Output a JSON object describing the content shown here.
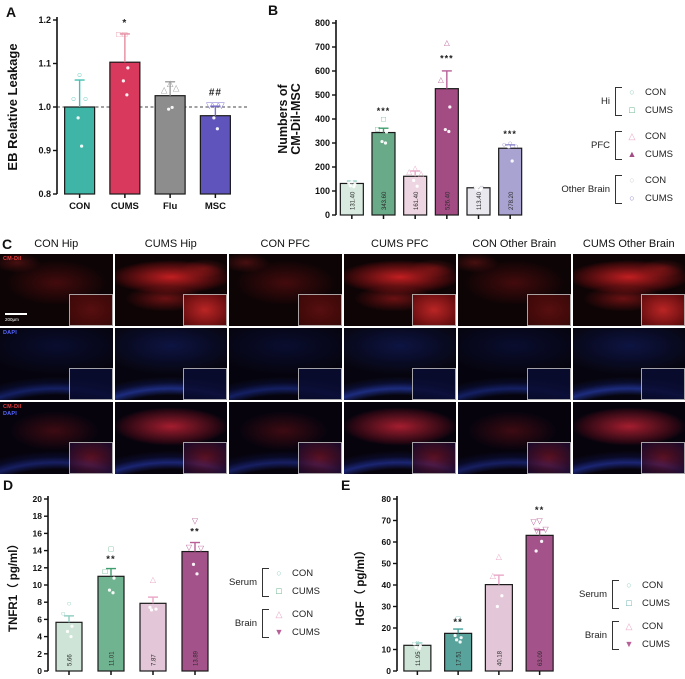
{
  "panel_labels": {
    "a": "A",
    "b": "B",
    "c": "C",
    "d": "D",
    "e": "E"
  },
  "chart_data": [
    {
      "panel": "A",
      "type": "bar",
      "title": "",
      "ylabel": [
        "EB Relative Leakage"
      ],
      "xlabel": "",
      "ylim": [
        0.8,
        1.2
      ],
      "ystep": 0.1,
      "ydec": 1,
      "grid": false,
      "categories": [
        "CON",
        "CUMS",
        "Flu",
        "MSC"
      ],
      "values": [
        1.0,
        1.103,
        1.026,
        0.98
      ],
      "errors": [
        0.062,
        0.065,
        0.032,
        0.022
      ],
      "bar_colors": [
        "#3fb5a8",
        "#d8395d",
        "#8d8d8d",
        "#5f54bb"
      ],
      "accent_colors": [
        "#45c0b2",
        "#e58ca0",
        "#9f9f9f",
        "#7a70cf"
      ],
      "marker_shapes": [
        "circle",
        "square",
        "triangle-up",
        "triangle-down"
      ],
      "points": [
        [
          1.075,
          1.02,
          1.02,
          0.975,
          0.91
        ],
        [
          1.168,
          1.168,
          1.09,
          1.06,
          1.028
        ],
        [
          1.055,
          1.04,
          1.045,
          0.995,
          0.999
        ],
        [
          1.005,
          1.005,
          1.005,
          0.975,
          0.95
        ]
      ],
      "annotations": [
        "",
        "*",
        "",
        "##"
      ],
      "annotation_y": [
        null,
        1.186,
        null,
        1.027
      ],
      "dashed_y": 1.0,
      "show_x_labels": true,
      "value_labels": []
    },
    {
      "panel": "B",
      "type": "bar",
      "title": "",
      "ylabel": [
        "Numbers of",
        "CM-Dil-MSC"
      ],
      "xlabel": "",
      "ylim": [
        0,
        800
      ],
      "ystep": 100,
      "ydec": 0,
      "grid": false,
      "categories": [
        "Hi CON",
        "Hi CUMS",
        "PFC CON",
        "PFC CUMS",
        "Other Brain CON",
        "Other Brain CUMS"
      ],
      "values": [
        131.4,
        343.6,
        161.4,
        526.4,
        113.4,
        278.2
      ],
      "value_labels": [
        "131.40",
        "343.60",
        "161.40",
        "526.40",
        "113.40",
        "278.20"
      ],
      "errors": [
        10,
        18,
        22,
        74,
        5,
        14
      ],
      "bar_colors": [
        "#d9ebe0",
        "#69aa88",
        "#eed5e2",
        "#a34c84",
        "#e9e8ef",
        "#a9a3d2"
      ],
      "accent_colors": [
        "#8fccc0",
        "#3f9e6e",
        "#e8a7c6",
        "#b85f98",
        "#c9c9d4",
        "#8d86c9"
      ],
      "marker_shapes": [
        "circle",
        "square",
        "triangle-up",
        "triangle-up",
        "circle",
        "circle"
      ],
      "points": [
        [
          138,
          133,
          128,
          122,
          118
        ],
        [
          400,
          358,
          346,
          306,
          300
        ],
        [
          196,
          181,
          174,
          144,
          120
        ],
        [
          720,
          565,
          450,
          356,
          348
        ],
        [
          119,
          116,
          112,
          109,
          107
        ],
        [
          301,
          295,
          289,
          284,
          225
        ]
      ],
      "annotations": [
        "",
        "***",
        "",
        "***",
        "",
        "***"
      ],
      "annotation_y": [
        null,
        420,
        null,
        640,
        null,
        325
      ],
      "dashed_y": null,
      "show_x_labels": false,
      "legend": {
        "groups": [
          {
            "label": "Hi",
            "entries": [
              {
                "label": "CON",
                "shape": "circle",
                "color": "#8fccc0"
              },
              {
                "label": "CUMS",
                "shape": "square",
                "color": "#3f9e6e"
              }
            ]
          },
          {
            "label": "PFC",
            "entries": [
              {
                "label": "CON",
                "shape": "triangle-up",
                "color": "#e8a7c6"
              },
              {
                "label": "CUMS",
                "shape": "triangle-up-filled",
                "color": "#a34c84"
              }
            ]
          },
          {
            "label": "Other Brain",
            "entries": [
              {
                "label": "CON",
                "shape": "circle",
                "color": "#cfcfd8"
              },
              {
                "label": "CUMS",
                "shape": "circle",
                "color": "#8d86c9"
              }
            ]
          }
        ]
      }
    },
    {
      "panel": "D",
      "type": "bar",
      "title": "",
      "ylabel": [
        "TNFR1（ pg/ml）"
      ],
      "xlabel": "",
      "ylim": [
        0,
        20
      ],
      "ystep": 2,
      "ydec": 0,
      "grid": false,
      "categories": [
        "Serum CON",
        "Serum CUMS",
        "Brain CON",
        "Brain CUMS"
      ],
      "values": [
        5.66,
        11.01,
        7.87,
        13.89
      ],
      "value_labels": [
        "5.66",
        "11.01",
        "7.87",
        "13.89"
      ],
      "errors": [
        0.75,
        0.9,
        0.72,
        1.05
      ],
      "bar_colors": [
        "#cde4d6",
        "#6fb390",
        "#e3c7d8",
        "#a4538a"
      ],
      "accent_colors": [
        "#8fccc0",
        "#3f9e6e",
        "#e8a7c6",
        "#b85f98"
      ],
      "marker_shapes": [
        "circle",
        "square",
        "triangle-up",
        "triangle-down"
      ],
      "points": [
        [
          7.9,
          6.7,
          5.2,
          4.6,
          4.0
        ],
        [
          14.2,
          11.6,
          10.8,
          9.4,
          9.1
        ],
        [
          10.7,
          7.4,
          7.2,
          7.1
        ],
        [
          17.5,
          14.4,
          14.3,
          12.4,
          11.3
        ]
      ],
      "annotations": [
        "",
        "**",
        "",
        "**"
      ],
      "annotation_y": [
        null,
        12.7,
        null,
        15.9
      ],
      "dashed_y": null,
      "show_x_labels": false,
      "legend": {
        "groups": [
          {
            "label": "Serum",
            "entries": [
              {
                "label": "CON",
                "shape": "circle",
                "color": "#8fccc0"
              },
              {
                "label": "CUMS",
                "shape": "square",
                "color": "#3f9e6e"
              }
            ]
          },
          {
            "label": "Brain",
            "entries": [
              {
                "label": "CON",
                "shape": "triangle-up",
                "color": "#e8a7c6"
              },
              {
                "label": "CUMS",
                "shape": "triangle-down-filled",
                "color": "#b85f98"
              }
            ]
          }
        ]
      }
    },
    {
      "panel": "E",
      "type": "bar",
      "title": "",
      "ylabel": [
        "HGF（ pg/ml）"
      ],
      "xlabel": "",
      "ylim": [
        0,
        80
      ],
      "ystep": 10,
      "ydec": 0,
      "grid": false,
      "categories": [
        "Serum CON",
        "Serum CUMS",
        "Brain CON",
        "Brain CUMS"
      ],
      "values": [
        11.95,
        17.51,
        40.18,
        63.09
      ],
      "value_labels": [
        "11.95",
        "17.51",
        "40.18",
        "63.09"
      ],
      "errors": [
        1.1,
        2.0,
        4.4,
        2.6
      ],
      "bar_colors": [
        "#cde4d6",
        "#58a49d",
        "#e3c7d8",
        "#a4538a"
      ],
      "accent_colors": [
        "#8fccc0",
        "#47a09a",
        "#e8a7c6",
        "#b85f98"
      ],
      "marker_shapes": [
        "circle",
        "square",
        "triangle-up",
        "triangle-down"
      ],
      "points": [
        [
          13.4,
          12.6,
          11.6,
          11.0,
          10.4
        ],
        [
          24.3,
          16.5,
          15.5,
          14.5,
          13.5
        ],
        [
          53.5,
          44.5,
          35.0,
          30.0
        ],
        [
          70.0,
          69.5,
          66.0,
          65.5,
          60.3,
          55.8
        ]
      ],
      "annotations": [
        "",
        "**",
        "",
        "**"
      ],
      "annotation_y": [
        null,
        21.5,
        null,
        73.5
      ],
      "dashed_y": null,
      "show_x_labels": false,
      "legend": {
        "groups": [
          {
            "label": "Serum",
            "entries": [
              {
                "label": "CON",
                "shape": "circle",
                "color": "#8fccc0"
              },
              {
                "label": "CUMS",
                "shape": "square",
                "color": "#47a09a"
              }
            ]
          },
          {
            "label": "Brain",
            "entries": [
              {
                "label": "CON",
                "shape": "triangle-up",
                "color": "#e8a7c6"
              },
              {
                "label": "CUMS",
                "shape": "triangle-down-filled",
                "color": "#b85f98"
              }
            ]
          }
        ]
      }
    }
  ],
  "panel_c": {
    "label": "C",
    "column_headers": [
      "CON Hip",
      "CUMS Hip",
      "CON PFC",
      "CUMS PFC",
      "CON Other Brain",
      "CUMS Other Brain"
    ],
    "stain_rows": [
      "CM-Dil",
      "DAPI",
      "Merge"
    ],
    "corner_labels": {
      "cm_dil": "CM-Dil",
      "dapi": "DAPI"
    },
    "scale_bar_label": "200μm"
  }
}
